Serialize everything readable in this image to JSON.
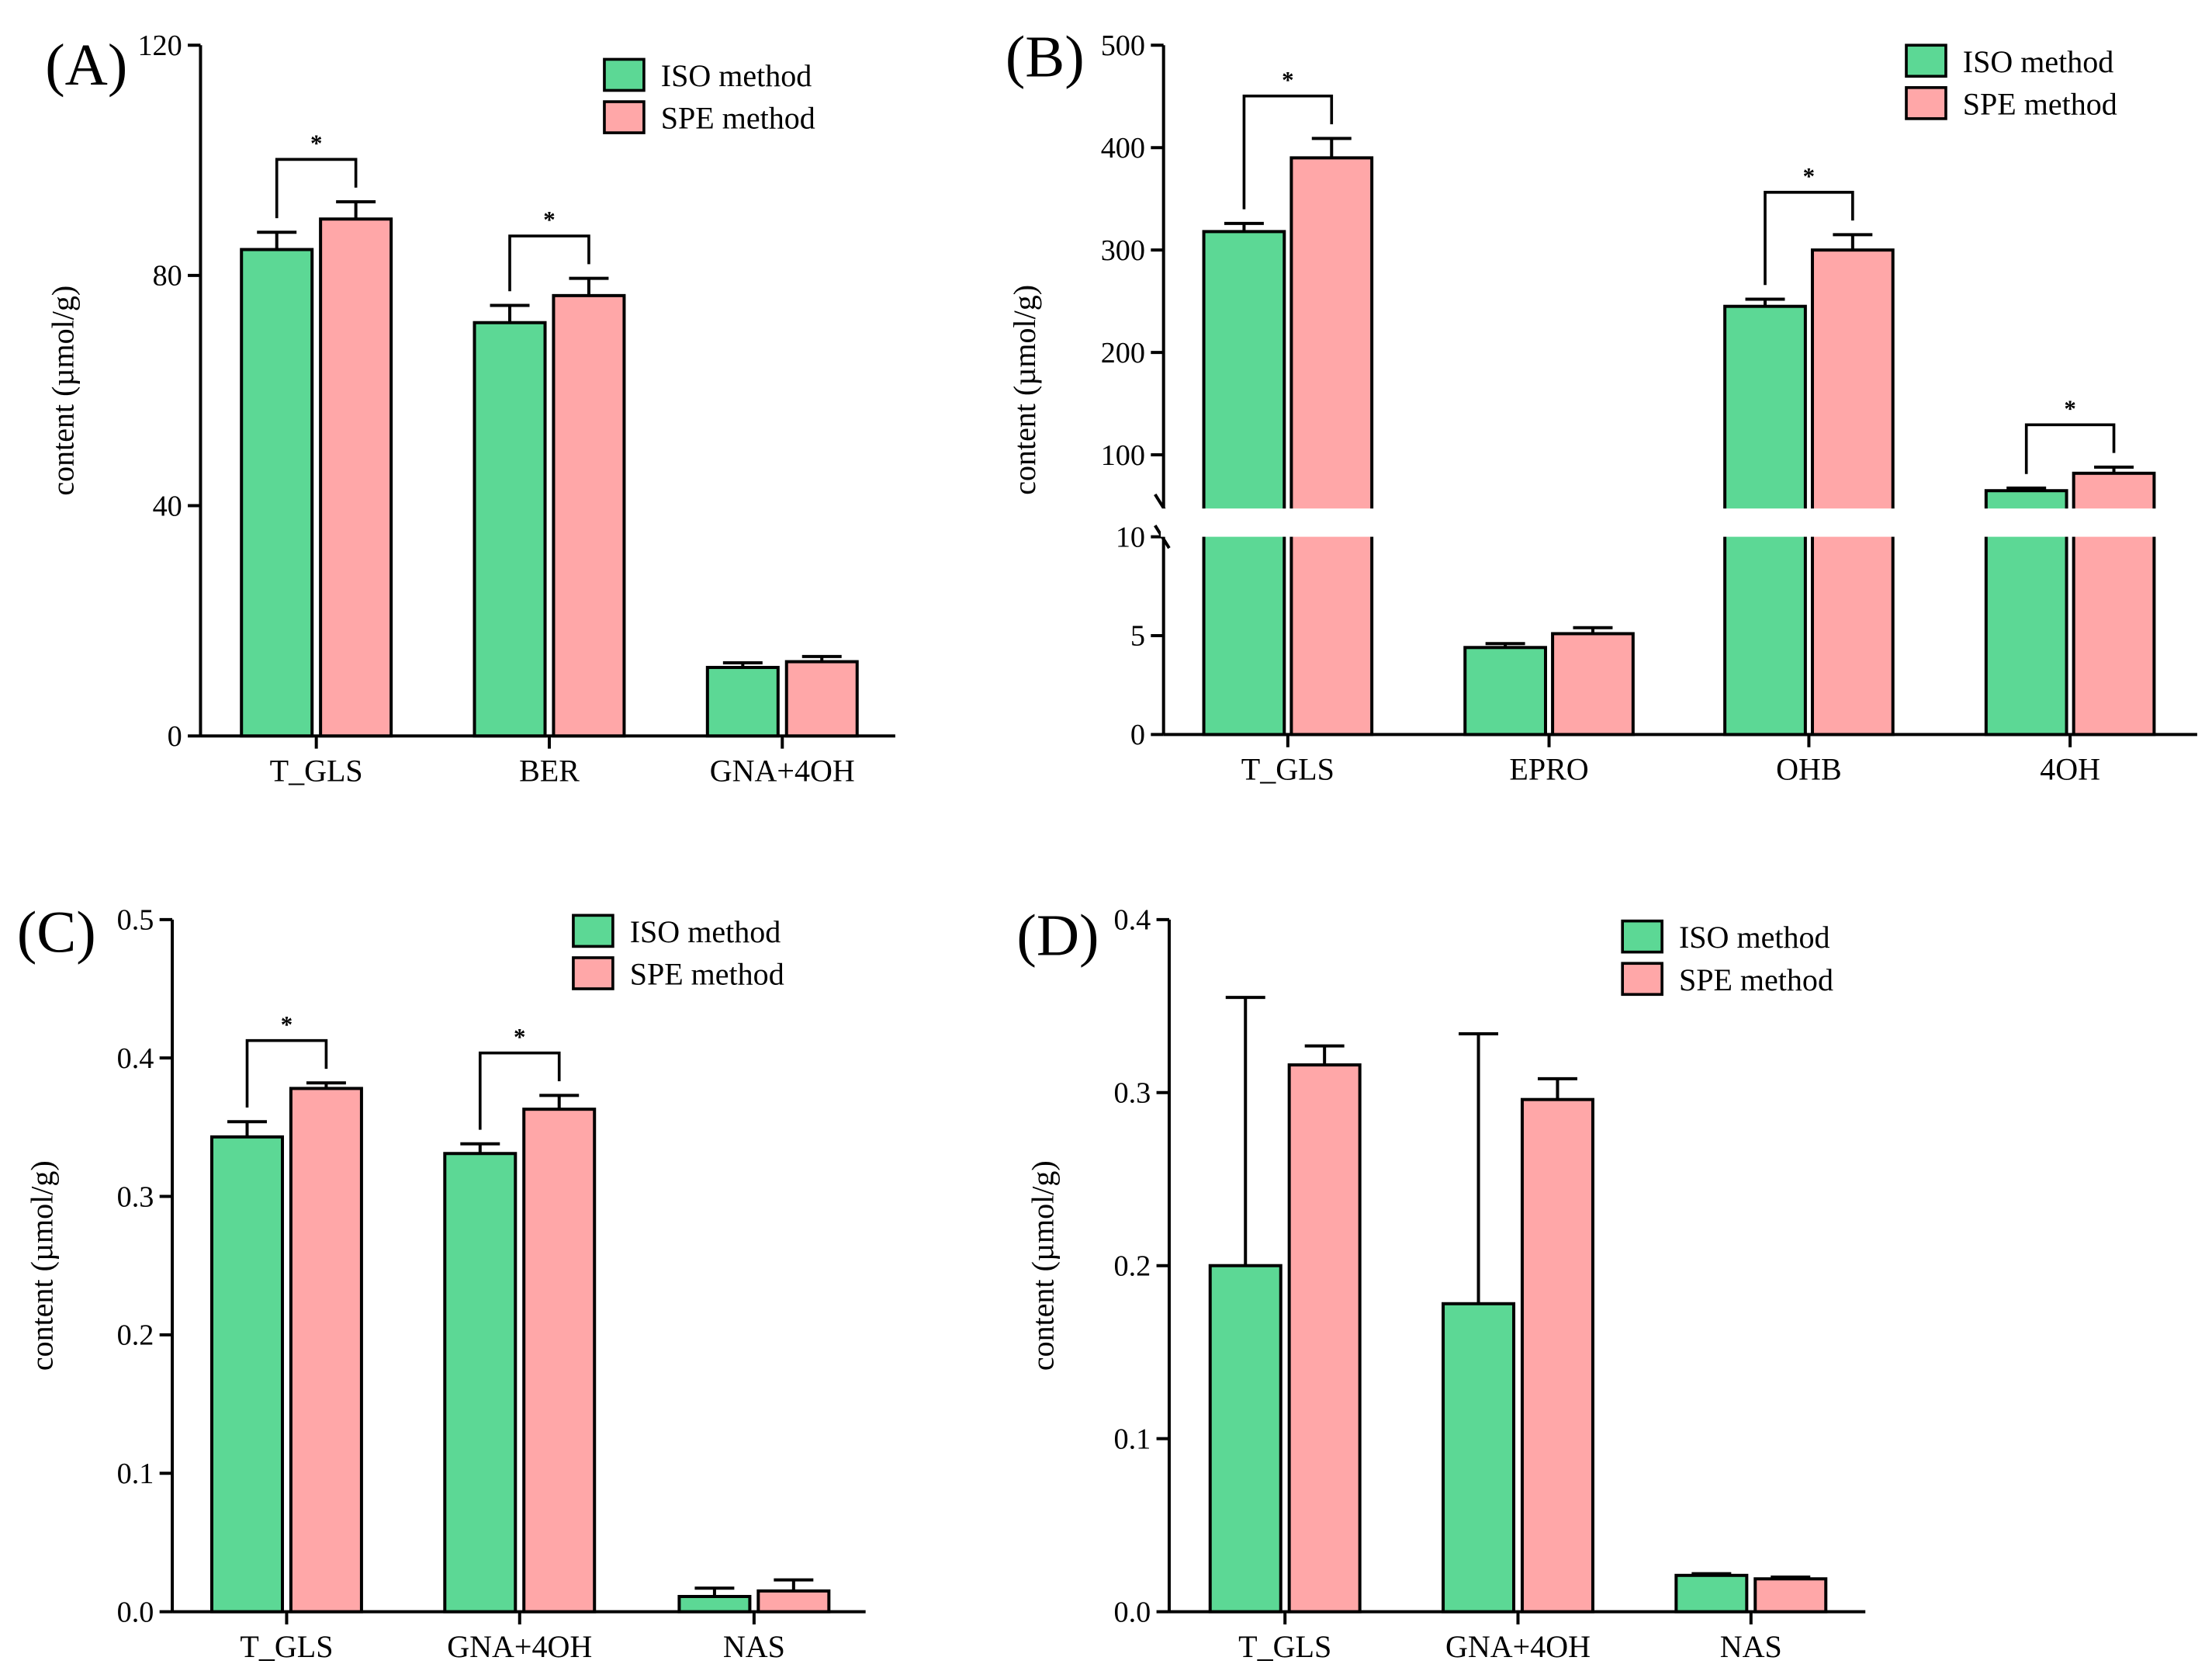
{
  "colors": {
    "iso": "#5cd895",
    "spe": "#ffa7a8",
    "stroke": "#000000"
  },
  "chart_data": [
    {
      "type": "bar",
      "panel_label": "(A)",
      "ylabel": "content (µmol/g)",
      "categories": [
        "T_GLS",
        "BER",
        "GNA+4OH"
      ],
      "yticks": [
        "0",
        "40",
        "80",
        "120"
      ],
      "ylim": [
        0,
        120
      ],
      "legend": "top-right",
      "series": [
        {
          "name": "ISO method",
          "values": [
            84.5,
            71.8,
            11.9
          ],
          "errors": [
            3.0,
            3.0,
            0.8
          ]
        },
        {
          "name": "SPE method",
          "values": [
            89.8,
            76.5,
            12.9
          ],
          "errors": [
            3.0,
            3.0,
            0.9
          ]
        }
      ],
      "significance": [
        {
          "category": "T_GLS",
          "label": "*"
        },
        {
          "category": "BER",
          "label": "*"
        }
      ]
    },
    {
      "type": "bar",
      "panel_label": "(B)",
      "ylabel": "content (µmol/g)",
      "categories": [
        "T_GLS",
        "EPRO",
        "OHB",
        "4OH"
      ],
      "yticks": [
        "0",
        "5",
        "10",
        "100",
        "200",
        "300",
        "400",
        "500"
      ],
      "ylim": [
        0,
        500
      ],
      "axis_break": [
        10,
        50
      ],
      "legend": "top-right",
      "series": [
        {
          "name": "ISO method",
          "values": [
            318,
            4.4,
            245,
            65
          ],
          "errors": [
            8,
            0.2,
            7,
            2.5
          ]
        },
        {
          "name": "SPE method",
          "values": [
            390,
            5.1,
            300,
            82
          ],
          "errors": [
            19,
            0.3,
            15,
            6
          ]
        }
      ],
      "significance": [
        {
          "category": "T_GLS",
          "label": "*"
        },
        {
          "category": "OHB",
          "label": "*"
        },
        {
          "category": "4OH",
          "label": "*"
        }
      ]
    },
    {
      "type": "bar",
      "panel_label": "(C)",
      "ylabel": "content (µmol/g)",
      "categories": [
        "T_GLS",
        "GNA+4OH",
        "NAS"
      ],
      "yticks": [
        "0.0",
        "0.1",
        "0.2",
        "0.3",
        "0.4",
        "0.5"
      ],
      "ylim": [
        0,
        0.5
      ],
      "legend": "top-right",
      "series": [
        {
          "name": "ISO method",
          "values": [
            0.343,
            0.331,
            0.011
          ],
          "errors": [
            0.011,
            0.007,
            0.006
          ]
        },
        {
          "name": "SPE method",
          "values": [
            0.378,
            0.363,
            0.015
          ],
          "errors": [
            0.004,
            0.01,
            0.008
          ]
        }
      ],
      "significance": [
        {
          "category": "T_GLS",
          "label": "*"
        },
        {
          "category": "GNA+4OH",
          "label": "*"
        }
      ]
    },
    {
      "type": "bar",
      "panel_label": "(D)",
      "ylabel": "content (µmol/g)",
      "categories": [
        "T_GLS",
        "GNA+4OH",
        "NAS"
      ],
      "yticks": [
        "0.0",
        "0.1",
        "0.2",
        "0.3",
        "0.4"
      ],
      "ylim": [
        0,
        0.4
      ],
      "legend": "top-right",
      "series": [
        {
          "name": "ISO method",
          "values": [
            0.2,
            0.178,
            0.021
          ],
          "errors": [
            0.155,
            0.156,
            0.001
          ]
        },
        {
          "name": "SPE method",
          "values": [
            0.316,
            0.296,
            0.019
          ],
          "errors": [
            0.011,
            0.012,
            0.001
          ]
        }
      ],
      "significance": []
    }
  ]
}
